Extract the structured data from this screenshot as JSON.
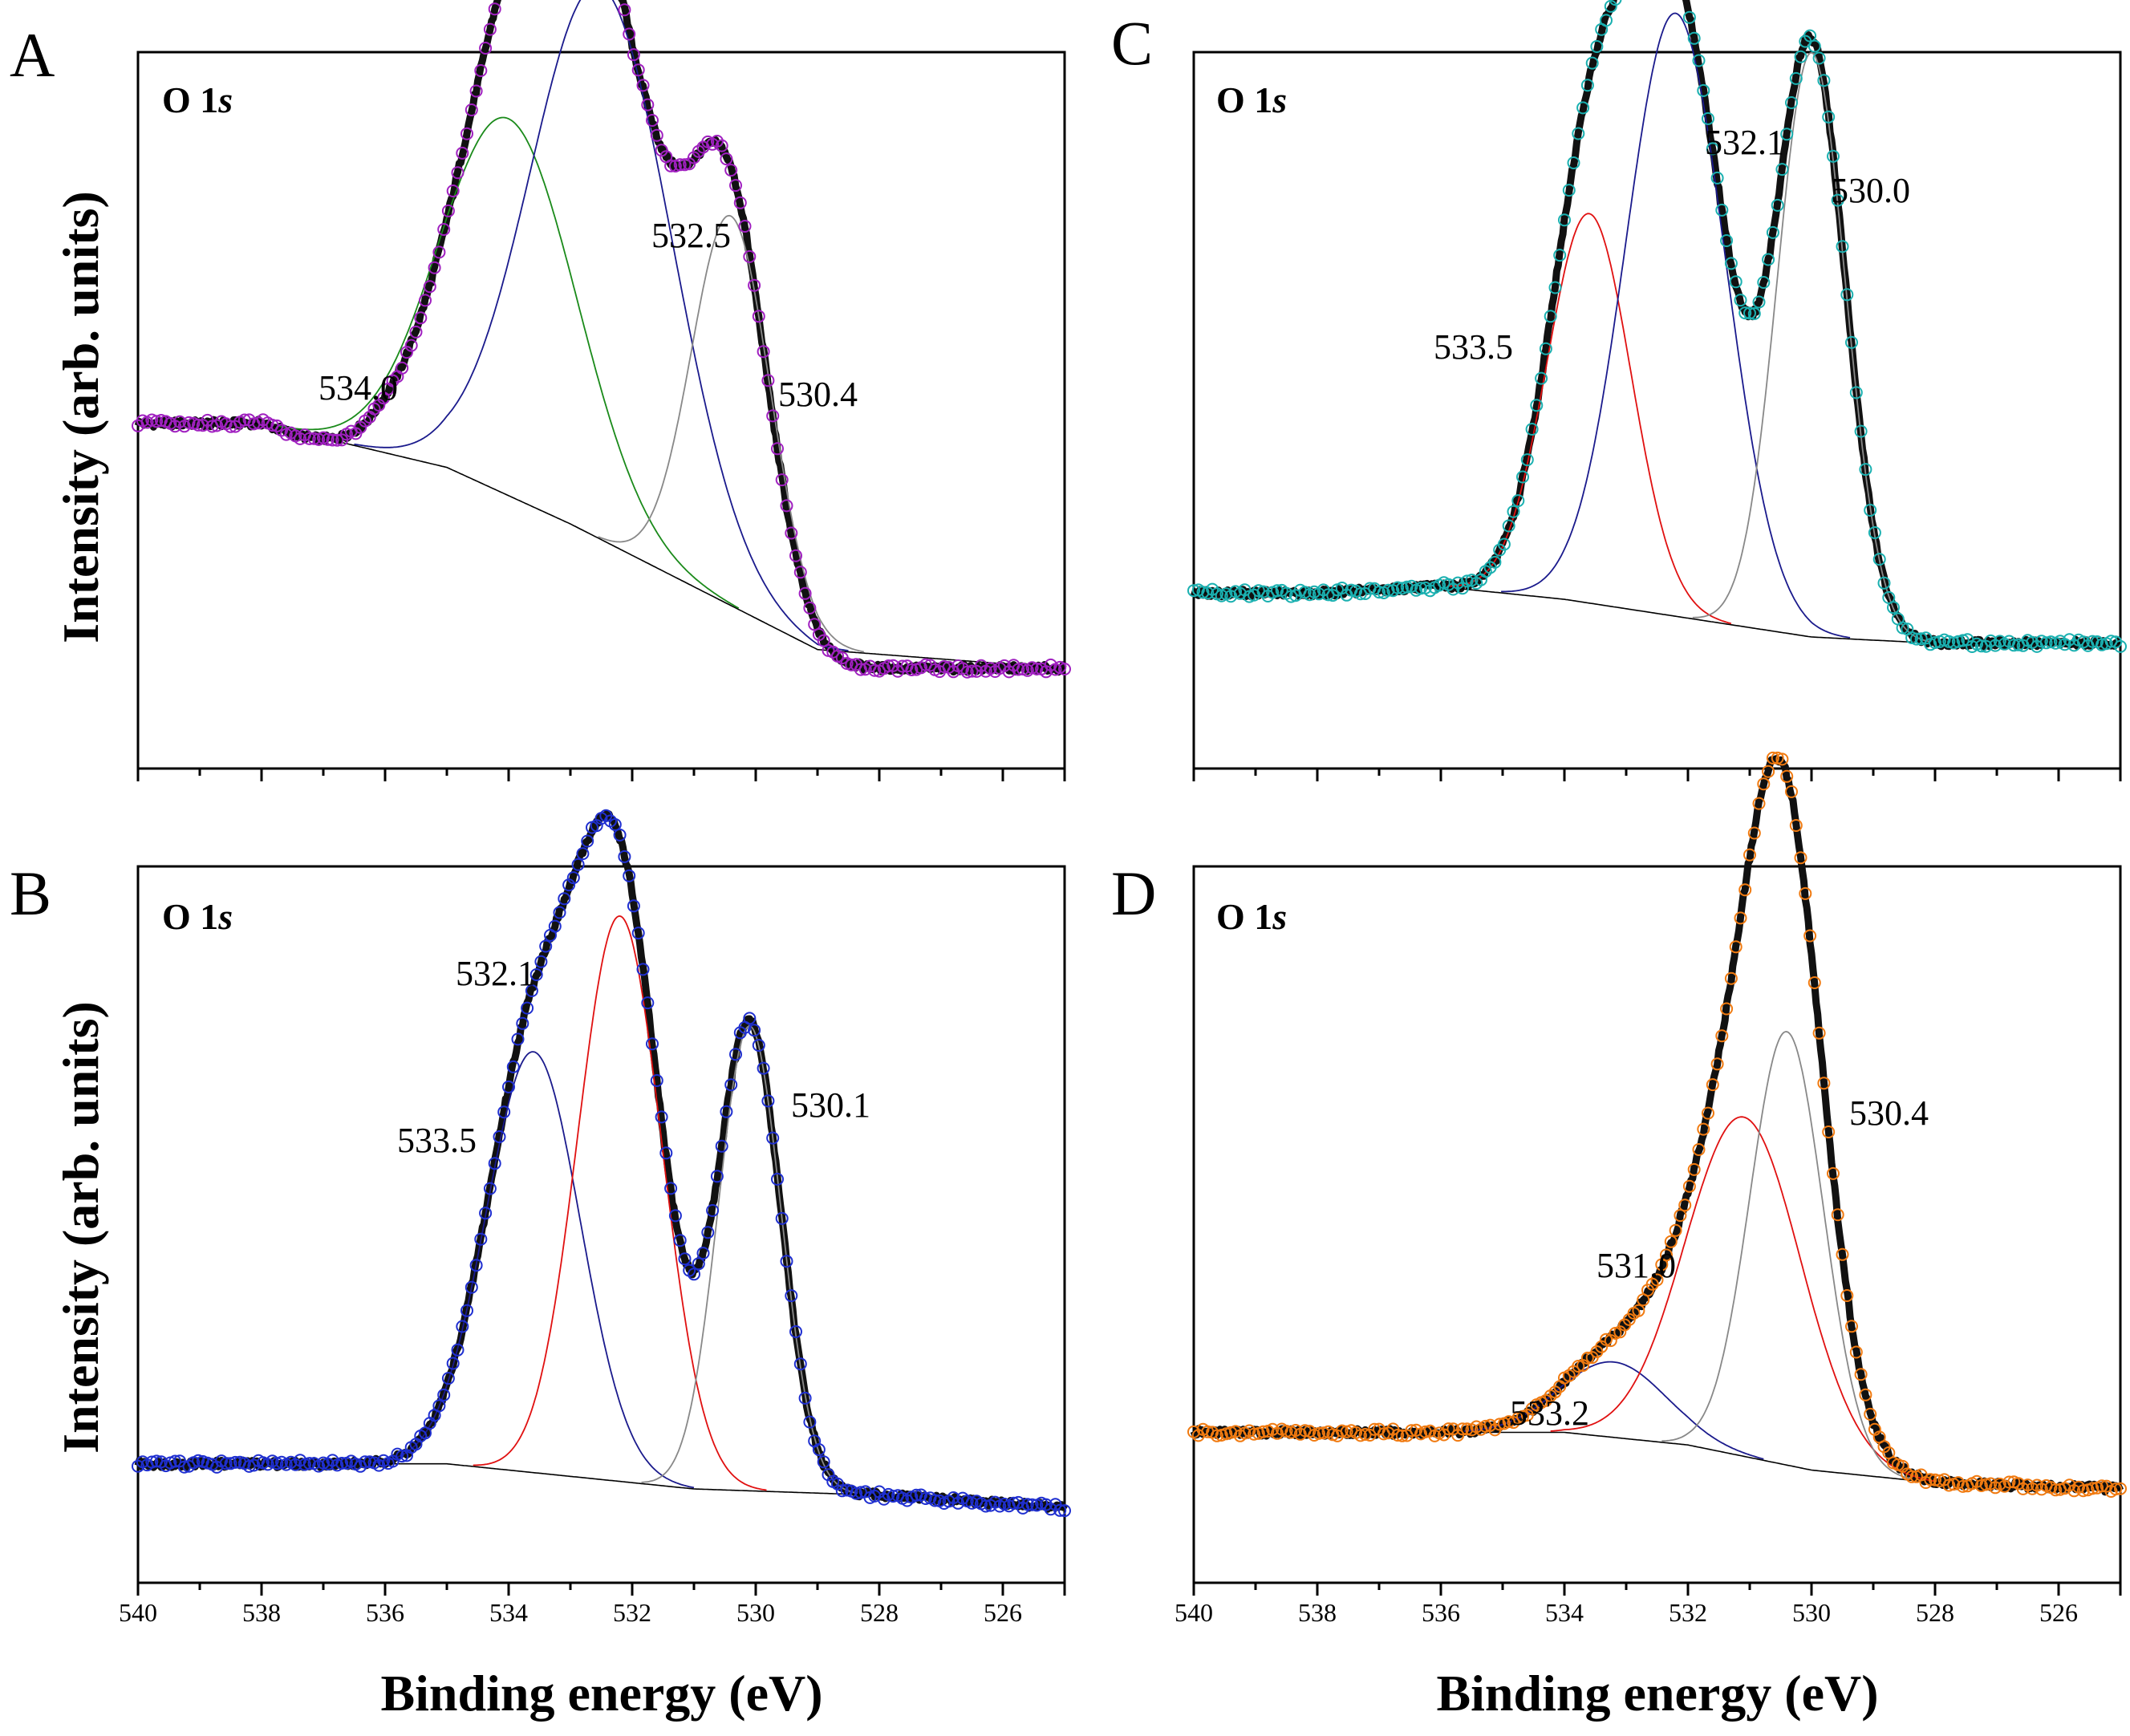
{
  "figure": {
    "xlabel": "Binding energy (eV)",
    "ylabel": "Intensity (arb. units)",
    "xlim": [
      540,
      525
    ],
    "xticks": [
      540,
      538,
      536,
      534,
      532,
      530,
      528,
      526
    ]
  },
  "chart_data": [
    {
      "panel": "A",
      "type": "line",
      "title": "O 1s",
      "data_color": "#a020c0",
      "peaks": [
        {
          "label": "534.0",
          "center": 534.0,
          "height": 0.6,
          "fwhm": 2.6,
          "color": "#1a8a1a"
        },
        {
          "label": "532.5",
          "center": 532.5,
          "height": 0.88,
          "fwhm": 2.7,
          "color": "#1a1a8c"
        },
        {
          "label": "530.4",
          "center": 530.4,
          "height": 0.62,
          "fwhm": 1.5,
          "color": "#888888"
        }
      ],
      "background": [
        [
          540.0,
          0.46
        ],
        [
          538.0,
          0.46
        ],
        [
          536.0,
          0.38
        ],
        [
          534.0,
          0.23
        ],
        [
          532.0,
          0.12
        ],
        [
          530.0,
          0.07
        ],
        [
          528.0,
          0.07
        ],
        [
          525.0,
          0.07
        ]
      ],
      "fit_backgrounds": [
        [
          540.0,
          0.46
        ],
        [
          538.0,
          0.46
        ],
        [
          535.0,
          0.39
        ],
        [
          533.0,
          0.3
        ],
        [
          531.0,
          0.2
        ],
        [
          529.0,
          0.1
        ],
        [
          525.0,
          0.07
        ]
      ]
    },
    {
      "panel": "B",
      "type": "line",
      "title": "O 1s",
      "data_color": "#1f2fd0",
      "peaks": [
        {
          "label": "533.5",
          "center": 533.6,
          "height": 0.67,
          "fwhm": 1.8,
          "color": "#1a1a8c"
        },
        {
          "label": "532.1",
          "center": 532.2,
          "height": 0.9,
          "fwhm": 1.6,
          "color": "#e01010"
        },
        {
          "label": "530.1",
          "center": 530.1,
          "height": 0.74,
          "fwhm": 1.2,
          "color": "#888888"
        }
      ],
      "background": [
        [
          540.0,
          0.1
        ],
        [
          535.0,
          0.1
        ],
        [
          533.0,
          0.08
        ],
        [
          531.0,
          0.06
        ],
        [
          528.0,
          0.05
        ],
        [
          525.0,
          0.03
        ]
      ],
      "fit_backgrounds": [
        [
          540.0,
          0.1
        ],
        [
          535.0,
          0.1
        ],
        [
          533.0,
          0.08
        ],
        [
          531.0,
          0.06
        ],
        [
          528.0,
          0.05
        ],
        [
          525.0,
          0.03
        ]
      ]
    },
    {
      "panel": "C",
      "type": "line",
      "title": "O 1s",
      "data_color": "#1ab0b0",
      "peaks": [
        {
          "label": "533.5",
          "center": 533.6,
          "height": 0.62,
          "fwhm": 1.6,
          "color": "#e01010"
        },
        {
          "label": "532.1",
          "center": 532.2,
          "height": 0.96,
          "fwhm": 1.9,
          "color": "#1a1a8c"
        },
        {
          "label": "530.0",
          "center": 530.0,
          "height": 0.93,
          "fwhm": 1.3,
          "color": "#888888"
        }
      ],
      "background": [
        [
          540.0,
          0.19
        ],
        [
          538.0,
          0.19
        ],
        [
          536.0,
          0.2
        ],
        [
          534.0,
          0.18
        ],
        [
          532.0,
          0.15
        ],
        [
          530.0,
          0.12
        ],
        [
          528.0,
          0.11
        ],
        [
          525.0,
          0.11
        ]
      ],
      "fit_backgrounds": [
        [
          540.0,
          0.19
        ],
        [
          536.0,
          0.2
        ],
        [
          534.0,
          0.18
        ],
        [
          532.0,
          0.15
        ],
        [
          530.0,
          0.12
        ],
        [
          528.0,
          0.11
        ],
        [
          525.0,
          0.11
        ]
      ]
    },
    {
      "panel": "D",
      "type": "line",
      "title": "O 1s",
      "data_color": "#f07a10",
      "peaks": [
        {
          "label": "533.2",
          "center": 533.2,
          "height": 0.12,
          "fwhm": 2.0,
          "color": "#1a1a8c"
        },
        {
          "label": "531.0",
          "center": 531.1,
          "height": 0.54,
          "fwhm": 2.2,
          "color": "#e01010"
        },
        {
          "label": "530.4",
          "center": 530.4,
          "height": 0.69,
          "fwhm": 1.4,
          "color": "#888888"
        }
      ],
      "background": [
        [
          540.0,
          0.15
        ],
        [
          536.0,
          0.15
        ],
        [
          534.0,
          0.15
        ],
        [
          532.0,
          0.13
        ],
        [
          530.0,
          0.09
        ],
        [
          528.0,
          0.07
        ],
        [
          525.0,
          0.06
        ]
      ],
      "fit_backgrounds": [
        [
          540.0,
          0.15
        ],
        [
          536.0,
          0.15
        ],
        [
          534.0,
          0.15
        ],
        [
          532.0,
          0.13
        ],
        [
          530.0,
          0.09
        ],
        [
          528.0,
          0.07
        ],
        [
          525.0,
          0.06
        ]
      ]
    }
  ]
}
